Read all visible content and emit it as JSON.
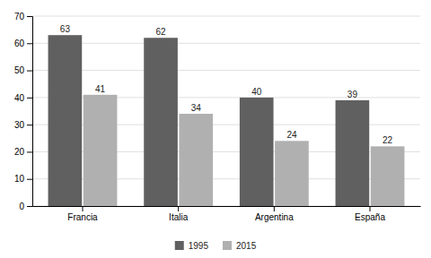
{
  "chart_data": {
    "type": "bar",
    "categories": [
      "Francia",
      "Italia",
      "Argentina",
      "España"
    ],
    "series": [
      {
        "name": "1995",
        "color": "#606060",
        "values": [
          63,
          62,
          40,
          39
        ]
      },
      {
        "name": "2015",
        "color": "#b0b0b0",
        "values": [
          41,
          34,
          24,
          22
        ]
      }
    ],
    "ylim": [
      0,
      70
    ],
    "yticks": [
      0,
      10,
      20,
      30,
      40,
      50,
      60,
      70
    ],
    "grid": true,
    "data_labels": true,
    "legend": "bottom"
  }
}
